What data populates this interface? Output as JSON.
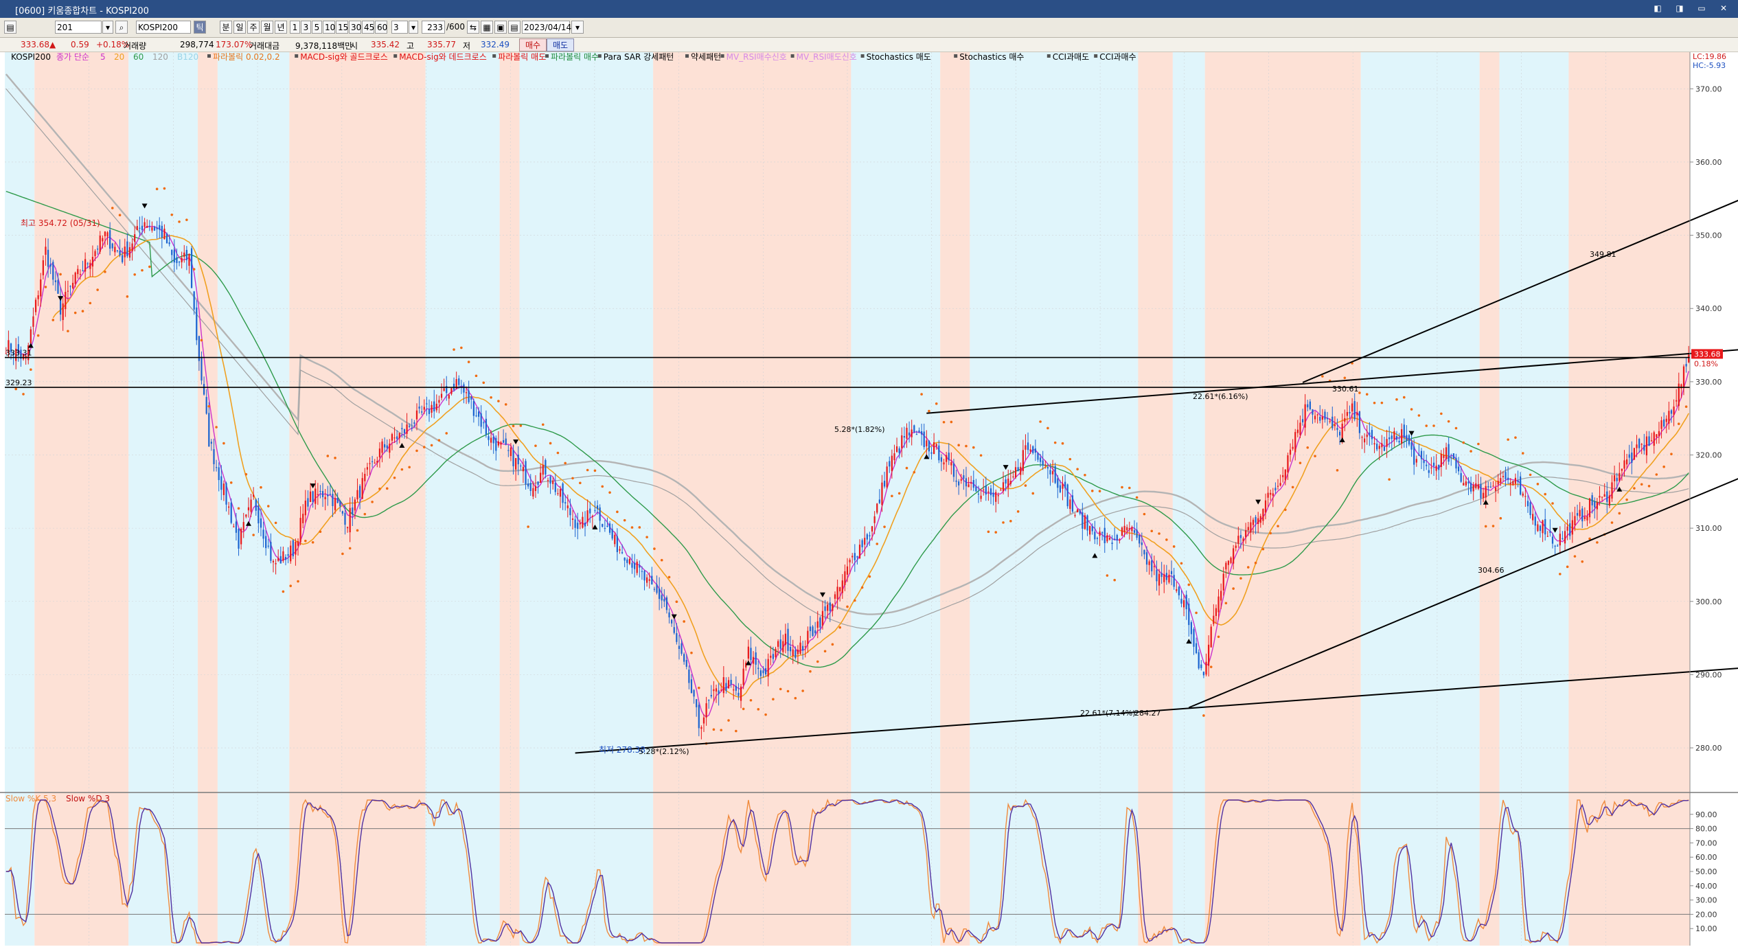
{
  "window": {
    "title": "[0600] 키움종합차트 - KOSPI200",
    "buttons": [
      "◧",
      "◨",
      "▭",
      "✕"
    ]
  },
  "toolbar": {
    "code": "201",
    "name": "KOSPI200",
    "period_buttons": [
      "틱",
      "분",
      "일",
      "주",
      "월",
      "년"
    ],
    "interval_buttons": [
      "1",
      "3",
      "5",
      "10",
      "15",
      "30",
      "45",
      "60"
    ],
    "interval_value": "3",
    "count": "233",
    "count_total": "/600",
    "date": "2023/04/14",
    "buy_label": "매수",
    "sell_label": "매도"
  },
  "quote": {
    "price": "333.68",
    "change": "0.59",
    "change_pct": "+0.18%",
    "volume_label": "거래량",
    "volume": "298,774",
    "volume_pct": "173.07%",
    "amount_label": "거래대금",
    "amount": "9,378,118백만",
    "open_label": "시",
    "open": "335.42",
    "high_label": "고",
    "high": "335.77",
    "low_label": "저",
    "low": "332.49"
  },
  "legend": {
    "symbol": "KOSPI200",
    "ma_prefix": "종가 단순",
    "ma_periods": [
      "5",
      "20",
      "60",
      "120",
      "B120"
    ],
    "items": [
      {
        "label": "파라볼릭 0.02,0.2",
        "color": "#e8751a"
      },
      {
        "label": "MACD-sig와 골드크로스",
        "color": "#e01010"
      },
      {
        "label": "MACD-sig와 데드크로스",
        "color": "#e01010"
      },
      {
        "label": "파라볼릭 매도",
        "color": "#e01010"
      },
      {
        "label": "파라볼릭 매수",
        "color": "#1f8a3c"
      },
      {
        "label": "Para SAR 강세패턴",
        "color": "#000000"
      },
      {
        "label": "약세패턴",
        "color": "#000000"
      },
      {
        "label": "MV_RSI매수신호",
        "color": "#d58ae6"
      },
      {
        "label": "MV_RSI매도신호",
        "color": "#d58ae6"
      },
      {
        "label": "Stochastics 매도",
        "color": "#000000"
      },
      {
        "label": "Stochastics 매수",
        "color": "#000000"
      },
      {
        "label": "CCI과매도",
        "color": "#000000"
      },
      {
        "label": "CCI과매수",
        "color": "#000000"
      }
    ],
    "lc": "LC:19.86",
    "hc": "HC:-5.93"
  },
  "colors": {
    "up": "#e8191b",
    "down": "#1c64d0",
    "ma5": "#cc33cc",
    "ma20": "#f0a020",
    "ma60": "#2e9a4a",
    "ma120": "#a0a0a0",
    "ma_b120": "#b4b4b4",
    "sar": "#f06a10",
    "pink_band": "#fde1d6",
    "blue_band": "#e0f5fb",
    "slow_k": "#f08a3c",
    "slow_d": "#5030a0"
  },
  "annotations": {
    "high_label": "최고 354.72 (05/31)",
    "low_label": "최저 278.38",
    "low_pct": "5.28*(2.12%)",
    "mid_label_1": "5.28*(1.82%)",
    "mid_label_2": "22.61*(6.16%)",
    "mid_label_3": "330.61",
    "mid_label_4": "22.61*(7.14%)",
    "mid_label_5": "284.27",
    "mid_label_6": "304.66",
    "upper_target": "349.81",
    "level_1": "333.31",
    "level_2": "329.23",
    "last_price": "333.68",
    "last_pct": "0.18%"
  },
  "price_axis": {
    "ticks": [
      "370.00",
      "360.00",
      "350.00",
      "340.00",
      "330.00",
      "320.00",
      "310.00",
      "300.00",
      "290.00",
      "280.00"
    ]
  },
  "stoch_axis": {
    "ticks": [
      "90.00",
      "80.00",
      "70.00",
      "60.00",
      "50.00",
      "40.00",
      "30.00",
      "20.00",
      "10.00"
    ]
  },
  "stoch_legend": {
    "k": "Slow %K 5,3",
    "d": "Slow %D 3"
  },
  "chart_data": {
    "type": "candlestick",
    "ylim": [
      274,
      375
    ],
    "anchors": [
      [
        0,
        335
      ],
      [
        8,
        333
      ],
      [
        16,
        348
      ],
      [
        22,
        340
      ],
      [
        28,
        344
      ],
      [
        34,
        347
      ],
      [
        40,
        350
      ],
      [
        47,
        347
      ],
      [
        56,
        352
      ],
      [
        64,
        350
      ],
      [
        68,
        346
      ],
      [
        74,
        347
      ],
      [
        77,
        336
      ],
      [
        82,
        322
      ],
      [
        88,
        315
      ],
      [
        94,
        308
      ],
      [
        100,
        314
      ],
      [
        108,
        305
      ],
      [
        116,
        307
      ],
      [
        122,
        314
      ],
      [
        130,
        315
      ],
      [
        138,
        311
      ],
      [
        144,
        316
      ],
      [
        152,
        321
      ],
      [
        160,
        323
      ],
      [
        166,
        325
      ],
      [
        174,
        327
      ],
      [
        182,
        330
      ],
      [
        188,
        327
      ],
      [
        196,
        322
      ],
      [
        204,
        320
      ],
      [
        212,
        316
      ],
      [
        218,
        318
      ],
      [
        226,
        313
      ],
      [
        232,
        310
      ],
      [
        238,
        313
      ],
      [
        246,
        308
      ],
      [
        252,
        306
      ],
      [
        260,
        302
      ],
      [
        266,
        300
      ],
      [
        272,
        293
      ],
      [
        276,
        289
      ],
      [
        280,
        283
      ],
      [
        284,
        286
      ],
      [
        290,
        289
      ],
      [
        296,
        287
      ],
      [
        300,
        293
      ],
      [
        306,
        290
      ],
      [
        314,
        295
      ],
      [
        320,
        293
      ],
      [
        328,
        297
      ],
      [
        336,
        301
      ],
      [
        342,
        306
      ],
      [
        350,
        310
      ],
      [
        356,
        318
      ],
      [
        364,
        323
      ],
      [
        370,
        322
      ],
      [
        378,
        320
      ],
      [
        384,
        317
      ],
      [
        392,
        316
      ],
      [
        398,
        314
      ],
      [
        406,
        316
      ],
      [
        412,
        321
      ],
      [
        418,
        320
      ],
      [
        426,
        316
      ],
      [
        432,
        312
      ],
      [
        438,
        310
      ],
      [
        446,
        308
      ],
      [
        454,
        310
      ],
      [
        460,
        306
      ],
      [
        466,
        303
      ],
      [
        472,
        303
      ],
      [
        476,
        300
      ],
      [
        480,
        293
      ],
      [
        484,
        290
      ],
      [
        488,
        298
      ],
      [
        494,
        306
      ],
      [
        500,
        309
      ],
      [
        508,
        313
      ],
      [
        514,
        316
      ],
      [
        520,
        322
      ],
      [
        526,
        327
      ],
      [
        532,
        325
      ],
      [
        538,
        323
      ],
      [
        544,
        326
      ],
      [
        550,
        322
      ],
      [
        556,
        321
      ],
      [
        564,
        323
      ],
      [
        570,
        319
      ],
      [
        576,
        318
      ],
      [
        582,
        320
      ],
      [
        588,
        317
      ],
      [
        596,
        315
      ],
      [
        604,
        317
      ],
      [
        610,
        316
      ],
      [
        616,
        312
      ],
      [
        622,
        310
      ],
      [
        626,
        308
      ],
      [
        632,
        310
      ],
      [
        640,
        313
      ],
      [
        646,
        314
      ],
      [
        652,
        318
      ],
      [
        658,
        320
      ],
      [
        664,
        322
      ],
      [
        670,
        324
      ],
      [
        676,
        329
      ],
      [
        680,
        333
      ]
    ],
    "total_bars": 681,
    "levels": [
      333.31,
      329.23
    ],
    "trendlines": [
      {
        "from": [
          230,
          279.3
        ],
        "to": [
          705,
          291
        ]
      },
      {
        "from": [
          478,
          285.5
        ],
        "to": [
          705,
          317.5
        ]
      },
      {
        "from": [
          372,
          325.7
        ],
        "to": [
          705,
          334.5
        ]
      },
      {
        "from": [
          524,
          329.9
        ],
        "to": [
          705,
          355.5
        ]
      }
    ]
  }
}
